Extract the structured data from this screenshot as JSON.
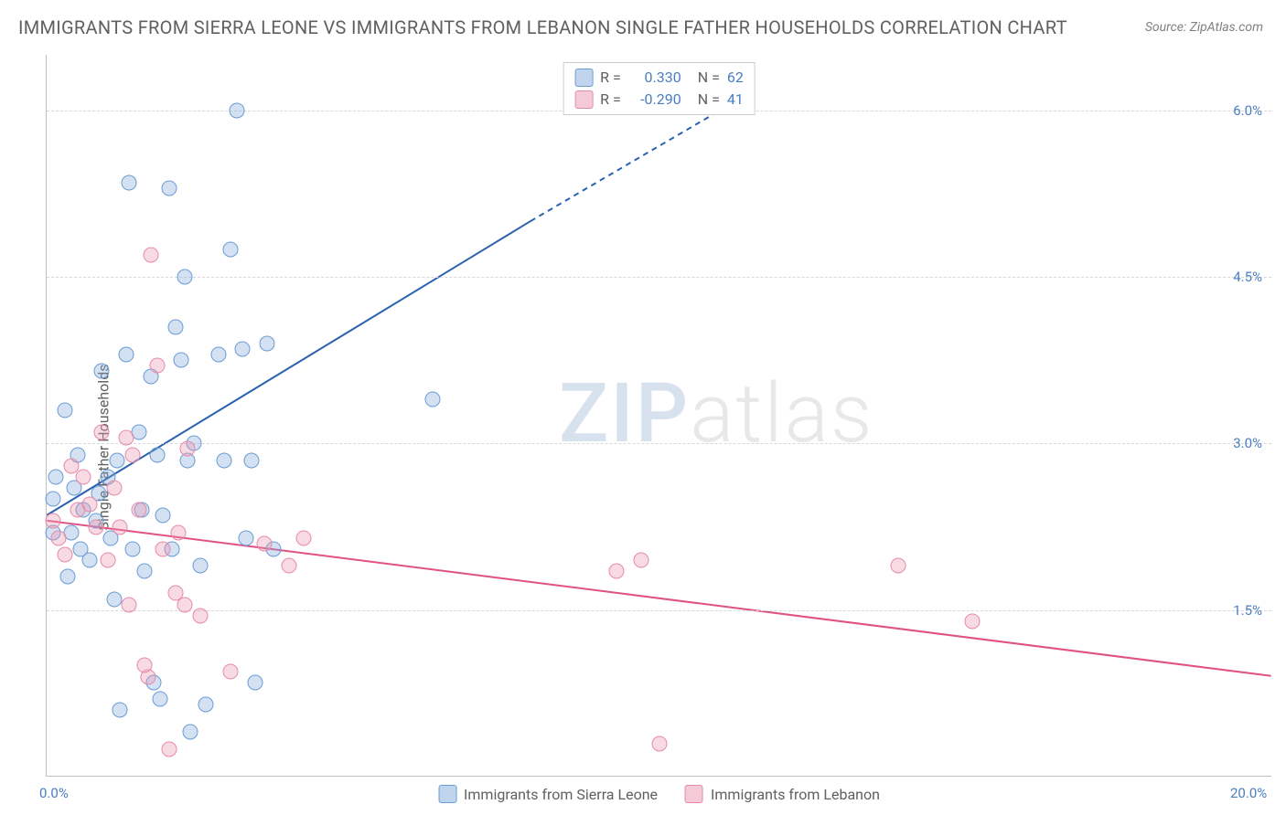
{
  "title": "IMMIGRANTS FROM SIERRA LEONE VS IMMIGRANTS FROM LEBANON SINGLE FATHER HOUSEHOLDS CORRELATION CHART",
  "source": "Source: ZipAtlas.com",
  "watermark_zip": "ZIP",
  "watermark_atlas": "atlas",
  "chart": {
    "type": "scatter",
    "ylabel": "Single Father Households",
    "background_color": "#ffffff",
    "grid_color": "#d8d8d8",
    "grid_style": "dashed",
    "axis_color": "#c0c0c0",
    "tick_label_color": "#4a7ec0",
    "tick_fontsize": 15,
    "ylabel_fontsize": 16,
    "ylabel_color": "#606060",
    "xlim": [
      0.0,
      20.0
    ],
    "ylim": [
      0.0,
      6.5
    ],
    "xticks": [
      0.0,
      20.0
    ],
    "xtick_labels": [
      "0.0%",
      "20.0%"
    ],
    "yticks": [
      1.5,
      3.0,
      4.5,
      6.0
    ],
    "ytick_labels": [
      "1.5%",
      "3.0%",
      "4.5%",
      "6.0%"
    ],
    "marker_size": 17,
    "marker_style": "circle",
    "marker_opacity": 0.35,
    "series": [
      {
        "name": "Immigrants from Sierra Leone",
        "color_fill": "#82aadc",
        "color_stroke": "#6a9cd4",
        "R": "0.330",
        "N": "62",
        "trend": {
          "p1": [
            0.0,
            2.35
          ],
          "p2": [
            7.9,
            5.0
          ],
          "p3": [
            11.0,
            6.0
          ],
          "solid_to": [
            7.9,
            5.0
          ],
          "line_color": "#2a61b0",
          "line_width": 2
        },
        "points": [
          [
            0.1,
            2.5
          ],
          [
            0.15,
            2.7
          ],
          [
            0.3,
            3.3
          ],
          [
            0.35,
            1.8
          ],
          [
            0.4,
            2.2
          ],
          [
            0.45,
            2.6
          ],
          [
            0.5,
            2.9
          ],
          [
            0.55,
            2.05
          ],
          [
            0.6,
            2.4
          ],
          [
            0.1,
            2.2
          ],
          [
            0.7,
            1.95
          ],
          [
            0.8,
            2.3
          ],
          [
            0.85,
            2.55
          ],
          [
            0.9,
            3.65
          ],
          [
            1.0,
            2.7
          ],
          [
            1.05,
            2.15
          ],
          [
            1.1,
            1.6
          ],
          [
            1.15,
            2.85
          ],
          [
            1.2,
            0.6
          ],
          [
            1.3,
            3.8
          ],
          [
            1.35,
            5.35
          ],
          [
            1.4,
            2.05
          ],
          [
            1.5,
            3.1
          ],
          [
            1.55,
            2.4
          ],
          [
            1.6,
            1.85
          ],
          [
            1.7,
            3.6
          ],
          [
            1.75,
            0.85
          ],
          [
            1.8,
            2.9
          ],
          [
            1.85,
            0.7
          ],
          [
            1.9,
            2.35
          ],
          [
            2.0,
            5.3
          ],
          [
            2.05,
            2.05
          ],
          [
            2.1,
            4.05
          ],
          [
            2.2,
            3.75
          ],
          [
            2.25,
            4.5
          ],
          [
            2.3,
            2.85
          ],
          [
            2.35,
            0.4
          ],
          [
            2.4,
            3.0
          ],
          [
            2.6,
            0.65
          ],
          [
            2.5,
            1.9
          ],
          [
            2.8,
            3.8
          ],
          [
            2.9,
            2.85
          ],
          [
            3.0,
            4.75
          ],
          [
            3.1,
            6.0
          ],
          [
            3.2,
            3.85
          ],
          [
            3.25,
            2.15
          ],
          [
            3.35,
            2.85
          ],
          [
            3.4,
            0.85
          ],
          [
            3.6,
            3.9
          ],
          [
            3.7,
            2.05
          ],
          [
            6.3,
            3.4
          ]
        ]
      },
      {
        "name": "Immigrants from Lebanon",
        "color_fill": "#eb96af",
        "color_stroke": "#e68aab",
        "R": "-0.290",
        "N": "41",
        "trend": {
          "p1": [
            0.0,
            2.3
          ],
          "p2": [
            20.0,
            0.9
          ],
          "line_color": "#e05184",
          "line_width": 2
        },
        "points": [
          [
            0.1,
            2.3
          ],
          [
            0.2,
            2.15
          ],
          [
            0.3,
            2.0
          ],
          [
            0.4,
            2.8
          ],
          [
            0.5,
            2.4
          ],
          [
            0.6,
            2.7
          ],
          [
            0.7,
            2.45
          ],
          [
            0.8,
            2.25
          ],
          [
            0.9,
            3.1
          ],
          [
            1.0,
            1.95
          ],
          [
            1.1,
            2.6
          ],
          [
            1.2,
            2.25
          ],
          [
            1.3,
            3.05
          ],
          [
            1.35,
            1.55
          ],
          [
            1.4,
            2.9
          ],
          [
            1.5,
            2.4
          ],
          [
            1.6,
            1.0
          ],
          [
            1.65,
            0.9
          ],
          [
            1.7,
            4.7
          ],
          [
            1.8,
            3.7
          ],
          [
            1.9,
            2.05
          ],
          [
            2.0,
            0.25
          ],
          [
            2.1,
            1.65
          ],
          [
            2.15,
            2.2
          ],
          [
            2.25,
            1.55
          ],
          [
            2.3,
            2.95
          ],
          [
            2.5,
            1.45
          ],
          [
            3.0,
            0.95
          ],
          [
            3.55,
            2.1
          ],
          [
            3.95,
            1.9
          ],
          [
            4.2,
            2.15
          ],
          [
            9.3,
            1.85
          ],
          [
            9.7,
            1.95
          ],
          [
            10.0,
            0.3
          ],
          [
            13.9,
            1.9
          ],
          [
            15.1,
            1.4
          ]
        ]
      }
    ],
    "legend_top": {
      "border_color": "#cccccc",
      "R_prefix": "R =",
      "N_prefix": "N ="
    },
    "legend_bottom": {
      "series1_label": "Immigrants from Sierra Leone",
      "series2_label": "Immigrants from Lebanon"
    }
  }
}
